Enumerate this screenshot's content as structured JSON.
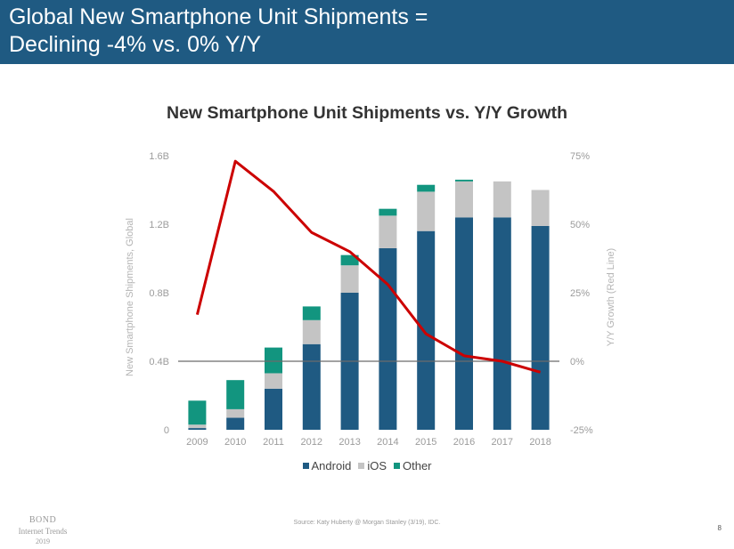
{
  "header": {
    "title_line1": "Global New Smartphone Unit Shipments =",
    "title_line2": "Declining -4% vs. 0% Y/Y"
  },
  "footer": {
    "source": "Source: Katy Huberty @ Morgan Stanley (3/19), IDC.",
    "page_number": "8",
    "logo_line1": "BOND",
    "logo_line2": "Internet Trends",
    "logo_line3": "2019"
  },
  "colors": {
    "header_bg": "#1f5a82",
    "android": "#1f5a82",
    "ios": "#c4c4c4",
    "other": "#12957f",
    "growth_line": "#cc0000"
  },
  "chart_data": {
    "type": "bar",
    "stacked": true,
    "title": "New Smartphone Unit Shipments vs. Y/Y Growth",
    "xlabel": "",
    "ylabel": "New Smartphone Shipments, Global",
    "y2label": "Y/Y Growth (Red Line)",
    "categories": [
      "2009",
      "2010",
      "2011",
      "2012",
      "2013",
      "2014",
      "2015",
      "2016",
      "2017",
      "2018"
    ],
    "series": [
      {
        "name": "Android",
        "values": [
          0.01,
          0.07,
          0.24,
          0.5,
          0.8,
          1.06,
          1.16,
          1.24,
          1.24,
          1.19
        ]
      },
      {
        "name": "iOS",
        "values": [
          0.02,
          0.05,
          0.09,
          0.14,
          0.16,
          0.19,
          0.23,
          0.21,
          0.21,
          0.21
        ]
      },
      {
        "name": "Other",
        "values": [
          0.14,
          0.17,
          0.15,
          0.08,
          0.06,
          0.04,
          0.04,
          0.01,
          0.0,
          0.0
        ]
      }
    ],
    "line_series": {
      "axis": "right",
      "values": [
        17,
        73,
        62,
        47,
        40,
        28,
        10,
        2,
        0,
        -4
      ]
    },
    "ylim": [
      0,
      1.6
    ],
    "y2lim": [
      -25,
      75
    ],
    "y_ticks": [
      "0",
      "0.4B",
      "0.8B",
      "1.2B",
      "1.6B"
    ],
    "y2_ticks": [
      "-25%",
      "0%",
      "25%",
      "50%",
      "75%"
    ],
    "legend_position": "bottom",
    "grid": false
  }
}
